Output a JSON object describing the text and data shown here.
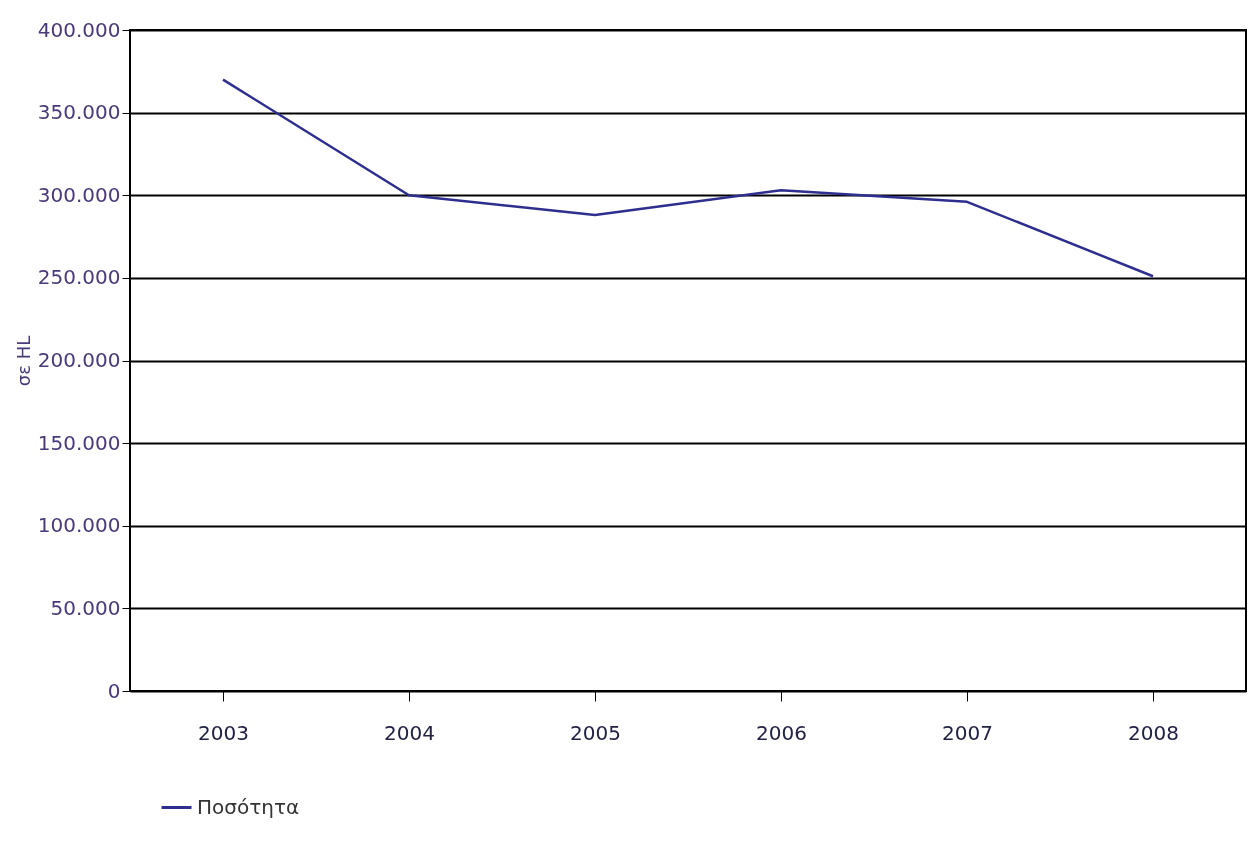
{
  "chart_data": {
    "type": "line",
    "ylabel": "σε HL",
    "categories": [
      "2003",
      "2004",
      "2005",
      "2006",
      "2007",
      "2008"
    ],
    "series": [
      {
        "name": "Ποσότητα",
        "color": "#2e2e8f",
        "values": [
          370000,
          300000,
          288000,
          303000,
          296000,
          251000
        ]
      }
    ],
    "ylim": [
      0,
      400000
    ],
    "yticks": [
      0,
      {
        "value": 50000,
        "label": "50.000"
      },
      {
        "value": 100000,
        "label": "100.000"
      },
      {
        "value": 150000,
        "label": "150.000"
      },
      {
        "value": 200000,
        "label": "200.000"
      },
      {
        "value": 250000,
        "label": "250.000"
      },
      {
        "value": 300000,
        "label": "300.000"
      },
      {
        "value": 350000,
        "label": "350.000"
      },
      {
        "value": 400000,
        "label": "400.000"
      }
    ],
    "grid": "y",
    "legend": "bottom",
    "marker": "none",
    "line_style": "solid"
  }
}
